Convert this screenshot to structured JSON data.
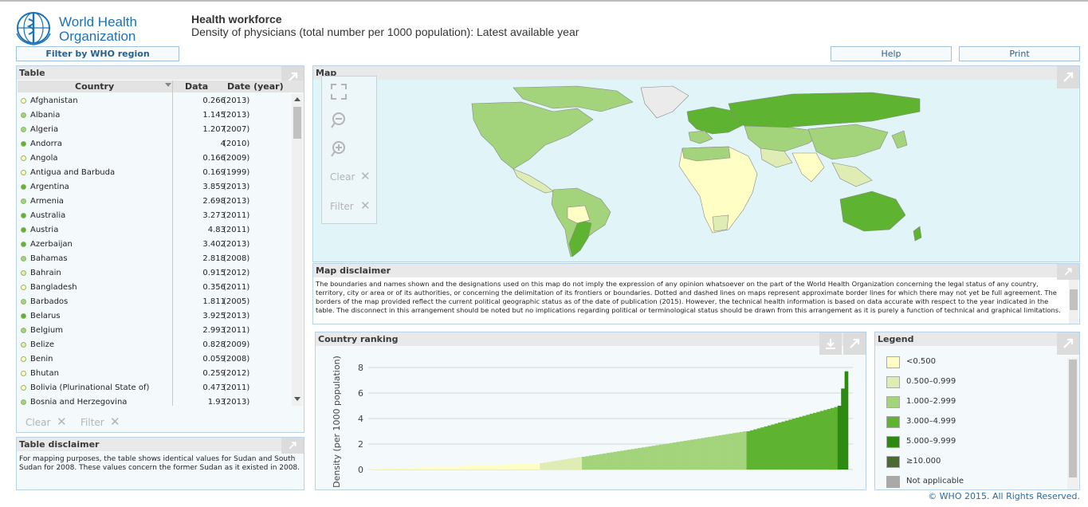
{
  "header": {
    "org_line1": "World Health",
    "org_line2": "Organization",
    "title": "Health workforce",
    "subtitle": "Density of physicians (total number per 1000 population): Latest available year",
    "filter_button": "Filter by WHO region",
    "help_button": "Help",
    "print_button": "Print"
  },
  "colors": {
    "very_low": "#ffffc5",
    "low": "#dfedb4",
    "mid": "#a3d47c",
    "high": "#5eb331",
    "very_high": "#2d8a10",
    "highest": "#4a6b33",
    "not_applicable": "#a9a9a9",
    "panel_border": "#b9d2e6",
    "link_blue": "#2b6aa0"
  },
  "table_panel": {
    "title": "Table",
    "columns": [
      "Country",
      "Data",
      "Date (year)"
    ],
    "rows": [
      {
        "country": "Afghanistan",
        "value": "0.266",
        "year": "(2013)",
        "level": "very_low"
      },
      {
        "country": "Albania",
        "value": "1.145",
        "year": "(2013)",
        "level": "mid"
      },
      {
        "country": "Algeria",
        "value": "1.207",
        "year": "(2007)",
        "level": "mid"
      },
      {
        "country": "Andorra",
        "value": "4",
        "year": "(2010)",
        "level": "high"
      },
      {
        "country": "Angola",
        "value": "0.166",
        "year": "(2009)",
        "level": "very_low"
      },
      {
        "country": "Antigua and Barbuda",
        "value": "0.169",
        "year": "(1999)",
        "level": "very_low"
      },
      {
        "country": "Argentina",
        "value": "3.859",
        "year": "(2013)",
        "level": "high"
      },
      {
        "country": "Armenia",
        "value": "2.698",
        "year": "(2013)",
        "level": "mid"
      },
      {
        "country": "Australia",
        "value": "3.273",
        "year": "(2011)",
        "level": "high"
      },
      {
        "country": "Austria",
        "value": "4.83",
        "year": "(2011)",
        "level": "high"
      },
      {
        "country": "Azerbaijan",
        "value": "3.402",
        "year": "(2013)",
        "level": "high"
      },
      {
        "country": "Bahamas",
        "value": "2.818",
        "year": "(2008)",
        "level": "mid"
      },
      {
        "country": "Bahrain",
        "value": "0.915",
        "year": "(2012)",
        "level": "low"
      },
      {
        "country": "Bangladesh",
        "value": "0.356",
        "year": "(2011)",
        "level": "very_low"
      },
      {
        "country": "Barbados",
        "value": "1.811",
        "year": "(2005)",
        "level": "mid"
      },
      {
        "country": "Belarus",
        "value": "3.925",
        "year": "(2013)",
        "level": "high"
      },
      {
        "country": "Belgium",
        "value": "2.993",
        "year": "(2011)",
        "level": "mid"
      },
      {
        "country": "Belize",
        "value": "0.828",
        "year": "(2009)",
        "level": "low"
      },
      {
        "country": "Benin",
        "value": "0.059",
        "year": "(2008)",
        "level": "very_low"
      },
      {
        "country": "Bhutan",
        "value": "0.259",
        "year": "(2012)",
        "level": "very_low"
      },
      {
        "country": "Bolivia (Plurinational State of)",
        "value": "0.473",
        "year": "(2011)",
        "level": "very_low"
      },
      {
        "country": "Bosnia and Herzegovina",
        "value": "1.93",
        "year": "(2013)",
        "level": "mid"
      }
    ],
    "clear_label": "Clear",
    "filter_label": "Filter"
  },
  "table_disclaimer": {
    "title": "Table disclaimer",
    "text": "For mapping purposes, the table shows identical values for Sudan and South Sudan for 2008. These values concern the former Sudan as it existed in 2008."
  },
  "map_panel": {
    "title": "Map",
    "clear_label": "Clear",
    "filter_label": "Filter"
  },
  "map_disclaimer": {
    "title": "Map disclaimer",
    "text": "The boundaries and names shown and the designations used on this map do not imply the expression of any opinion whatsoever on the part of the World Health Organization concerning the legal status of any country, territory, city or area or of its authorities, or concerning the delimitation of its frontiers or boundaries. Dotted and dashed lines on maps represent approximate border lines for which there may not yet be full agreement. The borders of the map provided reflect the current political geographic status as of the date of publication (2015). However, the technical health information is based on data accurate with respect to the year indicated in the table. The disconnect in this arrangement should be noted but no implications regarding political or terminological status should be drawn from this arrangement as it is purely a function of technical and graphical limitations."
  },
  "ranking_panel": {
    "title": "Country ranking"
  },
  "chart_data": {
    "type": "bar",
    "title": "Country ranking",
    "xlabel": "",
    "ylabel": "Density (per 1000 population)",
    "ylim": [
      0,
      8
    ],
    "yticks": [
      "0",
      "2",
      "4",
      "6",
      "8"
    ],
    "grid": true,
    "description_of_series": "countries sorted ascending by density",
    "bands": [
      {
        "level": "very_low",
        "count": 49,
        "from": 0.02,
        "to": 0.49
      },
      {
        "level": "low",
        "count": 12,
        "from": 0.5,
        "to": 0.99
      },
      {
        "level": "mid",
        "count": 47,
        "from": 1.0,
        "to": 2.99
      },
      {
        "level": "high",
        "count": 26,
        "from": 3.0,
        "to": 4.9
      },
      {
        "level": "very_high",
        "count": 3,
        "from": 5.0,
        "to": 7.7
      }
    ]
  },
  "legend_panel": {
    "title": "Legend",
    "items": [
      {
        "label": "<0.500",
        "color_key": "very_low"
      },
      {
        "label": "0.500–0.999",
        "color_key": "low"
      },
      {
        "label": "1.000–2.999",
        "color_key": "mid"
      },
      {
        "label": "3.000–4.999",
        "color_key": "high"
      },
      {
        "label": "5.000–9.999",
        "color_key": "very_high"
      },
      {
        "label": "≥10.000",
        "color_key": "highest"
      },
      {
        "label": "Not applicable",
        "color_key": "not_applicable"
      }
    ]
  },
  "footer": {
    "text": "© WHO 2015. All Rights Reserved."
  },
  "icons": [
    "who-emblem-icon",
    "expand-icon",
    "fullscreen-icon",
    "zoom-out-icon",
    "zoom-in-icon",
    "close-icon",
    "download-icon",
    "sort-arrow-icon",
    "scroll-up-icon",
    "scroll-down-icon"
  ]
}
